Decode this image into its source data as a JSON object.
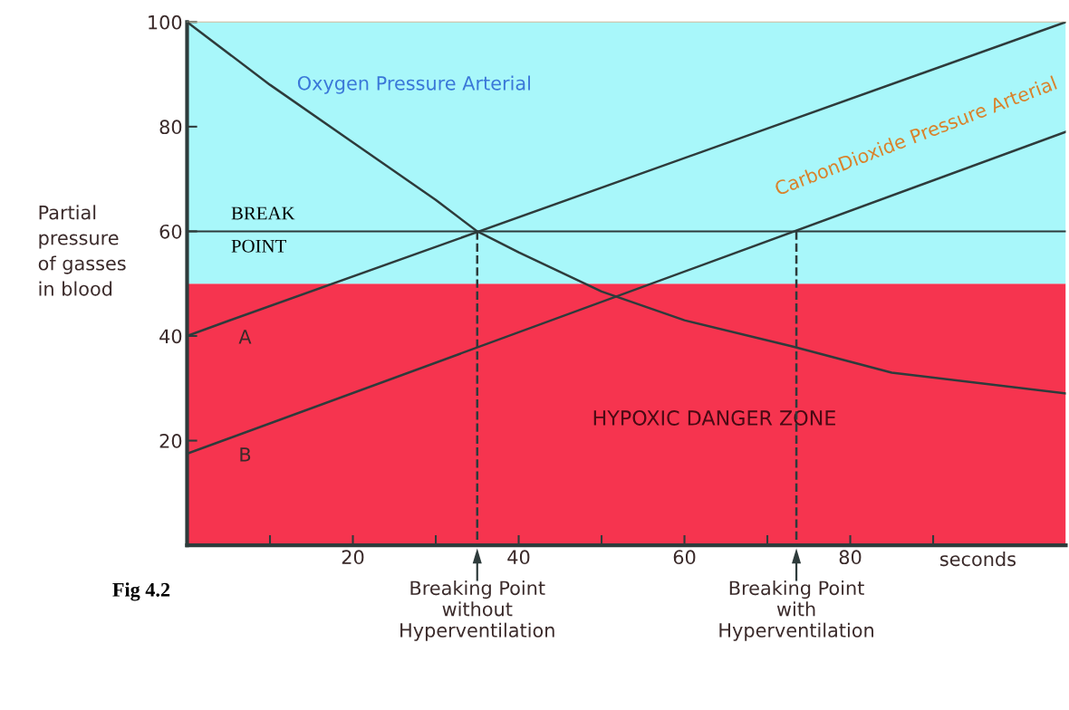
{
  "chart_data": {
    "type": "line",
    "xlabel": "seconds",
    "ylabel": "Partial\npressure\nof gasses\nin blood",
    "xlim": [
      0,
      106
    ],
    "ylim": [
      0,
      100
    ],
    "xticks": [
      {
        "value": 10,
        "label": null
      },
      20,
      {
        "value": 30,
        "label": null
      },
      40,
      {
        "value": 50,
        "label": null
      },
      60,
      {
        "value": 70,
        "label": null
      },
      80,
      {
        "value": 90,
        "label": null
      }
    ],
    "yticks": [
      20,
      40,
      60,
      80,
      100
    ],
    "grid": false,
    "marker": "none",
    "series": [
      {
        "color": "#2e3b3b",
        "x": [
          0,
          10,
          20,
          30,
          35,
          40,
          50,
          60,
          73,
          85,
          106
        ],
        "values": [
          100,
          88,
          77,
          66,
          60,
          56,
          48.5,
          43,
          38,
          33,
          29
        ]
      },
      {
        "name": "A",
        "color": "#2e3b3b",
        "x": [
          0,
          5,
          106
        ],
        "values": [
          40,
          42.9,
          100
        ]
      },
      {
        "name": "B",
        "color": "#2e3b3b",
        "x": [
          0,
          5,
          106
        ],
        "values": [
          17.5,
          20.4,
          79
        ]
      },
      {
        "color": "#2e3b3b",
        "line_style": "dashed",
        "x": [
          35,
          35
        ],
        "values": [
          60,
          0
        ]
      },
      {
        "color": "#2e3b3b",
        "line_style": "dashed",
        "x": [
          73.5,
          73.5
        ],
        "values": [
          60,
          0
        ]
      }
    ],
    "bands": [
      {
        "axis": "y",
        "from": 0,
        "to": 50,
        "color": "#f6344f",
        "label": "HYPOXIC DANGER ZONE"
      },
      {
        "axis": "y",
        "from": 50,
        "to": 100,
        "color": "#a8f7fa",
        "label": null
      }
    ],
    "ref_lines": [
      {
        "axis": "y",
        "value": 60,
        "label": "BREAK\nPOINT",
        "color": "#2e3b3b"
      }
    ],
    "annotations": [
      "Breaking Point\nwithout\nHyperventilation",
      "Breaking Point\nwith\nHyperventilation",
      "Oxygen Pressure Arterial",
      "CarbonDioxide Pressure Arterial",
      "Fig 4.2"
    ]
  }
}
